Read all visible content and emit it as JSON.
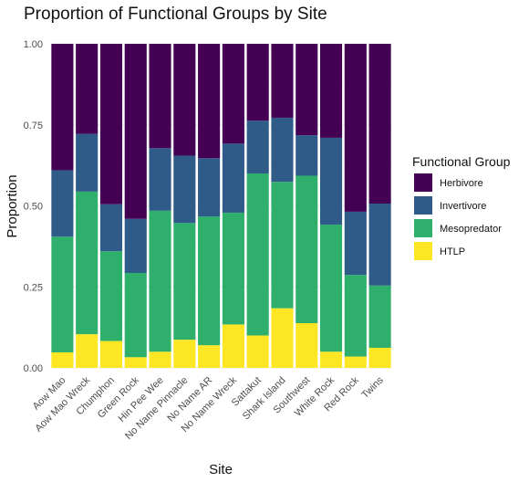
{
  "chart_data": {
    "type": "bar",
    "stacked": true,
    "title": "Proportion of Functional Groups by Site",
    "xlabel": "Site",
    "ylabel": "Proportion",
    "ylim": [
      0,
      1
    ],
    "yticks": [
      "0.00",
      "0.25",
      "0.50",
      "0.75",
      "1.00"
    ],
    "grid": true,
    "legend": {
      "title": "Functional Group",
      "position": "right",
      "entries": [
        "Herbivore",
        "Invertivore",
        "Mesopredator",
        "HTLP"
      ]
    },
    "categories": [
      "Aow Mao",
      "Aow Mao Wreck",
      "Chumphon",
      "Green Rock",
      "Hin Pee Wee",
      "No Name Pinnacle",
      "No Name AR",
      "No Name Wreck",
      "Sattakut",
      "Shark Island",
      "Southwest",
      "White Rock",
      "Red Rock",
      "Twins"
    ],
    "series": [
      {
        "name": "Herbivore",
        "color": "#440154",
        "values": [
          0.39,
          0.278,
          0.495,
          0.54,
          0.322,
          0.345,
          0.353,
          0.308,
          0.237,
          0.228,
          0.282,
          0.29,
          0.518,
          0.493
        ]
      },
      {
        "name": "Invertivore",
        "color": "#2f5b88",
        "values": [
          0.205,
          0.178,
          0.145,
          0.167,
          0.193,
          0.208,
          0.18,
          0.213,
          0.163,
          0.198,
          0.125,
          0.268,
          0.195,
          0.253
        ]
      },
      {
        "name": "Mesopredator",
        "color": "#2eb06c",
        "values": [
          0.357,
          0.44,
          0.277,
          0.26,
          0.435,
          0.36,
          0.397,
          0.345,
          0.5,
          0.39,
          0.455,
          0.392,
          0.252,
          0.192
        ]
      },
      {
        "name": "HTLP",
        "color": "#fde725",
        "values": [
          0.048,
          0.104,
          0.083,
          0.033,
          0.05,
          0.087,
          0.07,
          0.134,
          0.1,
          0.184,
          0.138,
          0.05,
          0.035,
          0.062
        ]
      }
    ]
  }
}
